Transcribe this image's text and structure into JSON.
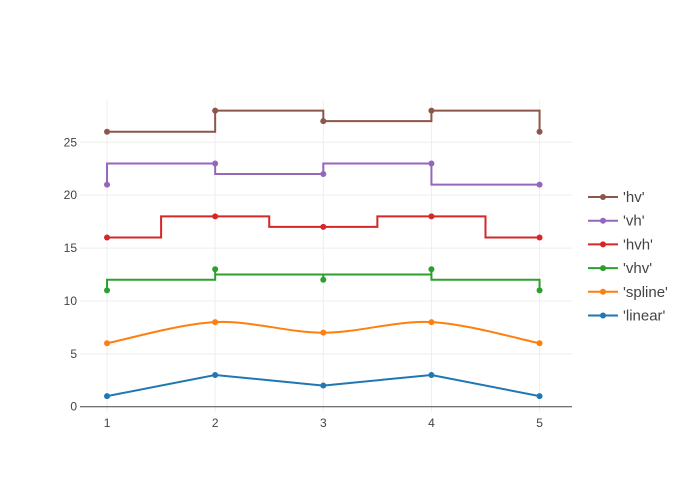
{
  "chart_data": {
    "type": "line",
    "title": "",
    "xlabel": "",
    "ylabel": "",
    "x": [
      1,
      2,
      3,
      4,
      5
    ],
    "xlim": [
      0.75,
      5.3
    ],
    "ylim": [
      -0.5,
      29
    ],
    "x_ticks": [
      1,
      2,
      3,
      4,
      5
    ],
    "y_ticks": [
      0,
      5,
      10,
      15,
      20,
      25
    ],
    "grid": true,
    "legend_position": "right",
    "series": [
      {
        "name": "'hv'",
        "shape": "hv",
        "color": "#8c564b",
        "values": [
          26,
          28,
          27,
          28,
          26
        ]
      },
      {
        "name": "'vh'",
        "shape": "vh",
        "color": "#9467bd",
        "values": [
          21,
          23,
          22,
          23,
          21
        ]
      },
      {
        "name": "'hvh'",
        "shape": "hvh",
        "color": "#d62728",
        "values": [
          16,
          18,
          17,
          18,
          16
        ]
      },
      {
        "name": "'vhv'",
        "shape": "vhv",
        "color": "#2ca02c",
        "values": [
          11,
          13,
          12,
          13,
          11
        ]
      },
      {
        "name": "'spline'",
        "shape": "spline",
        "color": "#ff7f0e",
        "values": [
          6,
          8,
          7,
          8,
          6
        ]
      },
      {
        "name": "'linear'",
        "shape": "linear",
        "color": "#1f77b4",
        "values": [
          1,
          3,
          2,
          3,
          1
        ]
      }
    ]
  }
}
